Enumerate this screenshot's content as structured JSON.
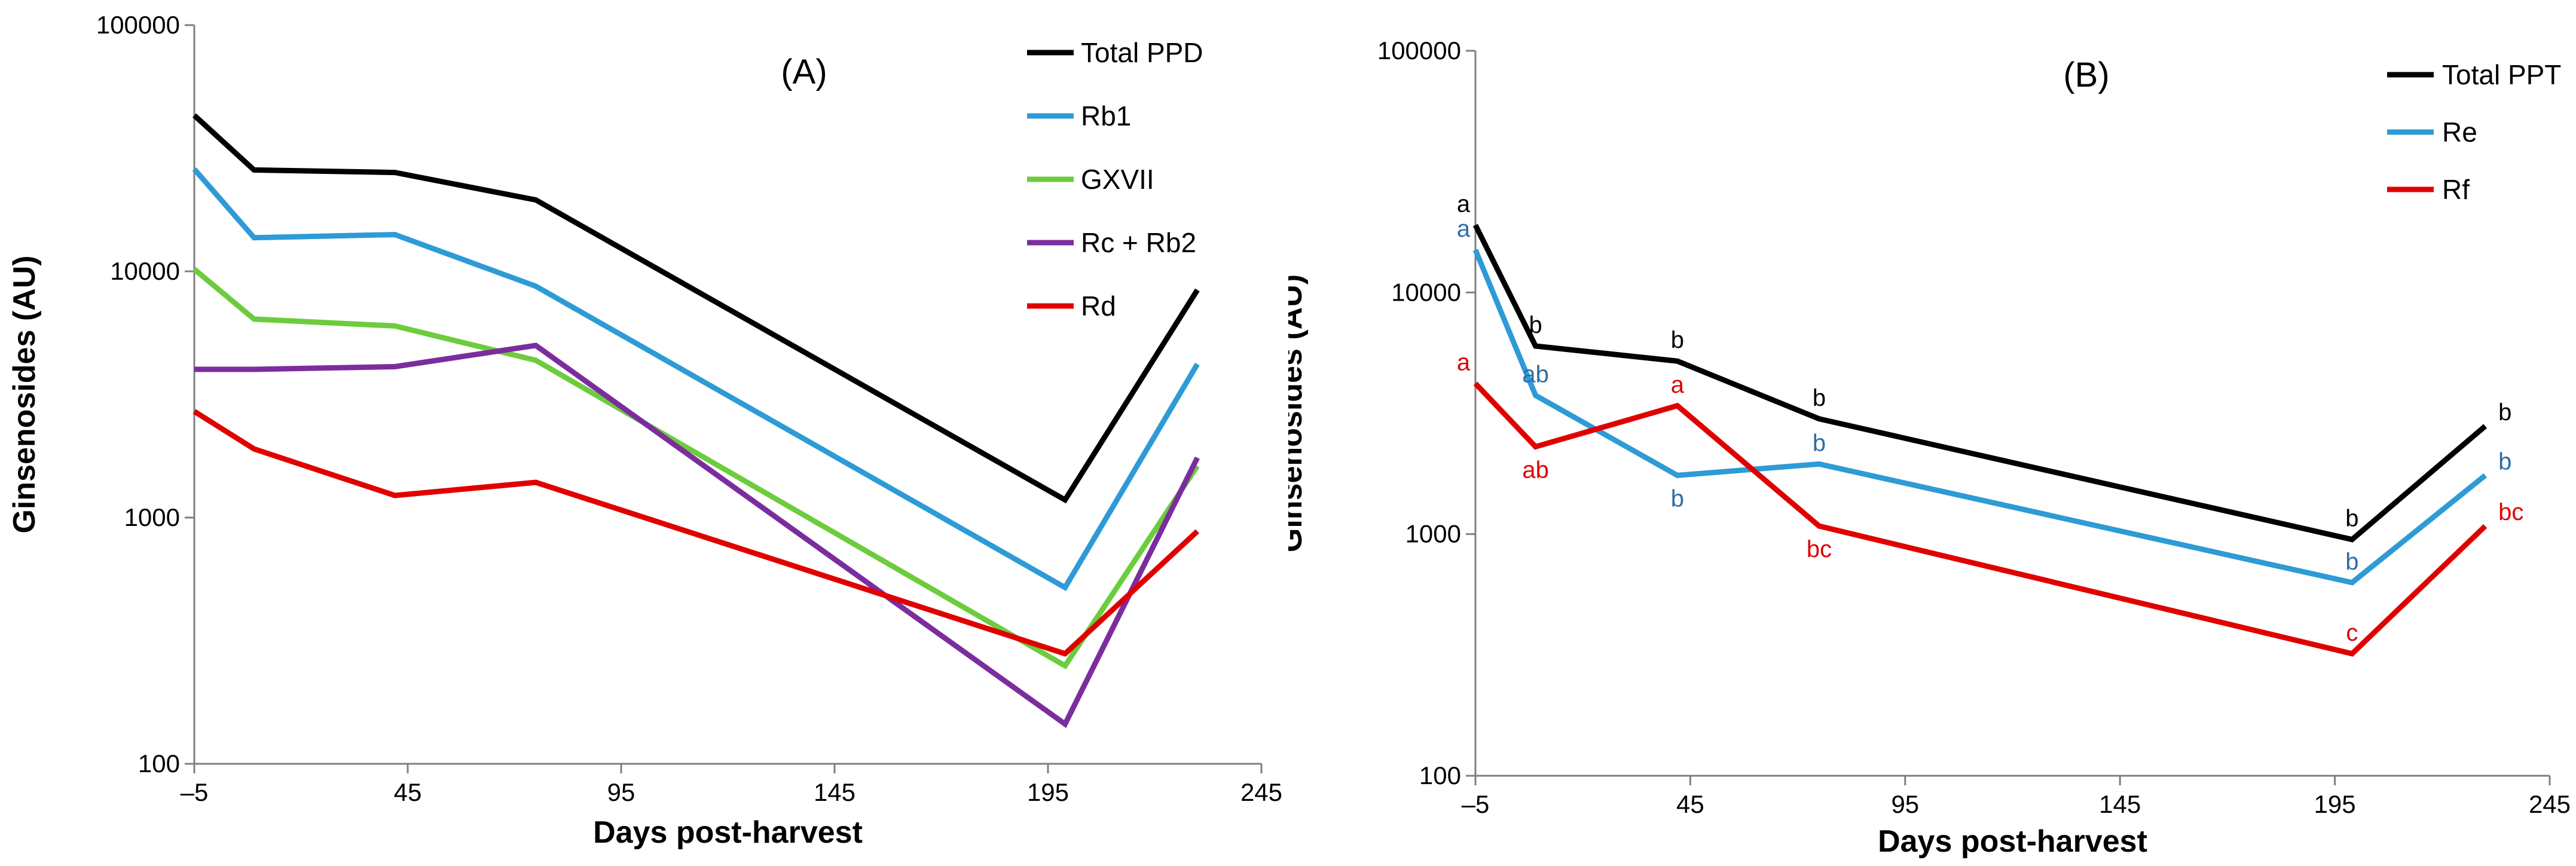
{
  "chart_data": [
    {
      "type": "line",
      "panel_label": "(A)",
      "xlabel": "Days post-harvest",
      "ylabel": "Ginsenosides (AU)",
      "yscale": "log",
      "ylim": [
        100,
        100000
      ],
      "xlim": [
        -5,
        245
      ],
      "x_ticks": [
        "-5",
        "45",
        "95",
        "145",
        "195",
        "245"
      ],
      "y_ticks": [
        "100",
        "1000",
        "10000",
        "100000"
      ],
      "legend_position": "top-right",
      "x": [
        -5,
        9,
        42,
        75,
        199,
        230
      ],
      "series": [
        {
          "name": "Total PPD",
          "color": "#000000",
          "values": [
            43000,
            25800,
            25200,
            19500,
            1180,
            8400
          ]
        },
        {
          "name": "Rb1",
          "color": "#2e9bd6",
          "values": [
            26000,
            13700,
            14100,
            8700,
            520,
            4200
          ]
        },
        {
          "name": "GXVII",
          "color": "#6dcc3d",
          "values": [
            10200,
            6400,
            6000,
            4350,
            250,
            1620
          ]
        },
        {
          "name": "Rc + Rb2",
          "color": "#7b2d9e",
          "values": [
            4000,
            4000,
            4100,
            5000,
            145,
            1750
          ]
        },
        {
          "name": "Rd",
          "color": "#e00000",
          "values": [
            2700,
            1900,
            1230,
            1390,
            280,
            880
          ]
        }
      ]
    },
    {
      "type": "line",
      "panel_label": "(B)",
      "xlabel": "Days post-harvest",
      "ylabel": "Ginsenosides (AU)",
      "yscale": "log",
      "ylim": [
        100,
        100000
      ],
      "xlim": [
        -5,
        245
      ],
      "x_ticks": [
        "-5",
        "45",
        "95",
        "145",
        "195",
        "245"
      ],
      "y_ticks": [
        "100",
        "1000",
        "10000",
        "100000"
      ],
      "legend_position": "top-right",
      "x": [
        -5,
        9,
        42,
        75,
        199,
        230
      ],
      "series": [
        {
          "name": "Total PPT",
          "color": "#000000",
          "label_color": "#000000",
          "values": [
            19000,
            6000,
            5200,
            3000,
            950,
            2800
          ],
          "sig_labels": [
            "a",
            "b",
            "b",
            "b",
            "b",
            "b"
          ],
          "sig_pos": [
            "above",
            "above",
            "above",
            "above",
            "above",
            "right"
          ]
        },
        {
          "name": "Re",
          "color": "#2e9bd6",
          "label_color": "#2e6da4",
          "values": [
            15000,
            3750,
            1750,
            1950,
            630,
            1750
          ],
          "sig_labels": [
            "a",
            "ab",
            "b",
            "b",
            "b",
            "b"
          ],
          "sig_pos": [
            "above",
            "above",
            "below",
            "above",
            "above",
            "right"
          ]
        },
        {
          "name": "Rf",
          "color": "#e00000",
          "label_color": "#e00000",
          "values": [
            4200,
            2300,
            3400,
            1080,
            320,
            1080
          ],
          "sig_labels": [
            "a",
            "ab",
            "a",
            "bc",
            "c",
            "bc"
          ],
          "sig_pos": [
            "above",
            "below",
            "above",
            "below",
            "above",
            "right"
          ]
        }
      ]
    }
  ]
}
